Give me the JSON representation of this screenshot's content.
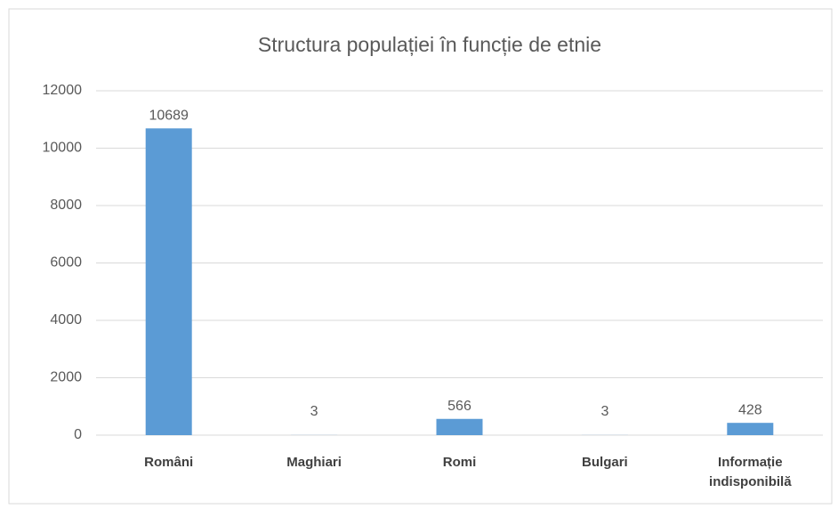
{
  "chart_data": {
    "type": "bar",
    "title": "Structura populației în funcție de etnie",
    "categories": [
      "Români",
      "Maghiari",
      "Romi",
      "Bulgari",
      "Informație indisponibilă"
    ],
    "values": [
      10689,
      3,
      566,
      3,
      428
    ],
    "color": "#5b9bd5",
    "ylim": [
      0,
      12000
    ],
    "yticks": [
      0,
      2000,
      4000,
      6000,
      8000,
      10000,
      12000
    ],
    "grid": true
  }
}
